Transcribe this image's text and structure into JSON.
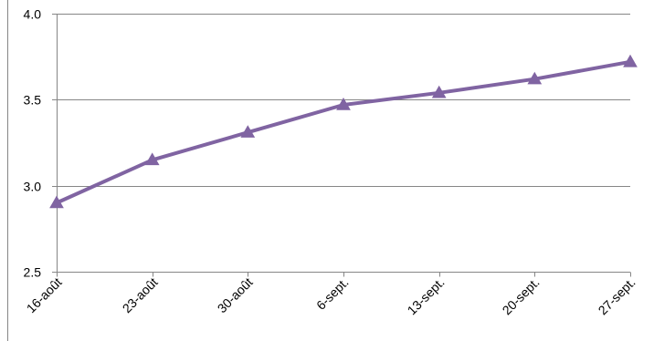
{
  "chart_data": {
    "type": "line",
    "title": "",
    "xlabel": "",
    "ylabel": "",
    "categories": [
      "16-août",
      "23-août",
      "30-août",
      "6-sept.",
      "13-sept.",
      "20-sept.",
      "27-sept."
    ],
    "series": [
      {
        "values": [
          2.9,
          3.15,
          3.31,
          3.47,
          3.54,
          3.62,
          3.72
        ],
        "color": "#8064a2",
        "marker": "triangle"
      }
    ],
    "ylim": [
      2.5,
      4.0
    ],
    "yticks": [
      2.5,
      3.0,
      3.5,
      4.0
    ],
    "ytick_labels": [
      "2.5",
      "3.0",
      "3.5",
      "4.0"
    ],
    "grid": true,
    "gridline_color": "#868686",
    "legend": "none"
  }
}
